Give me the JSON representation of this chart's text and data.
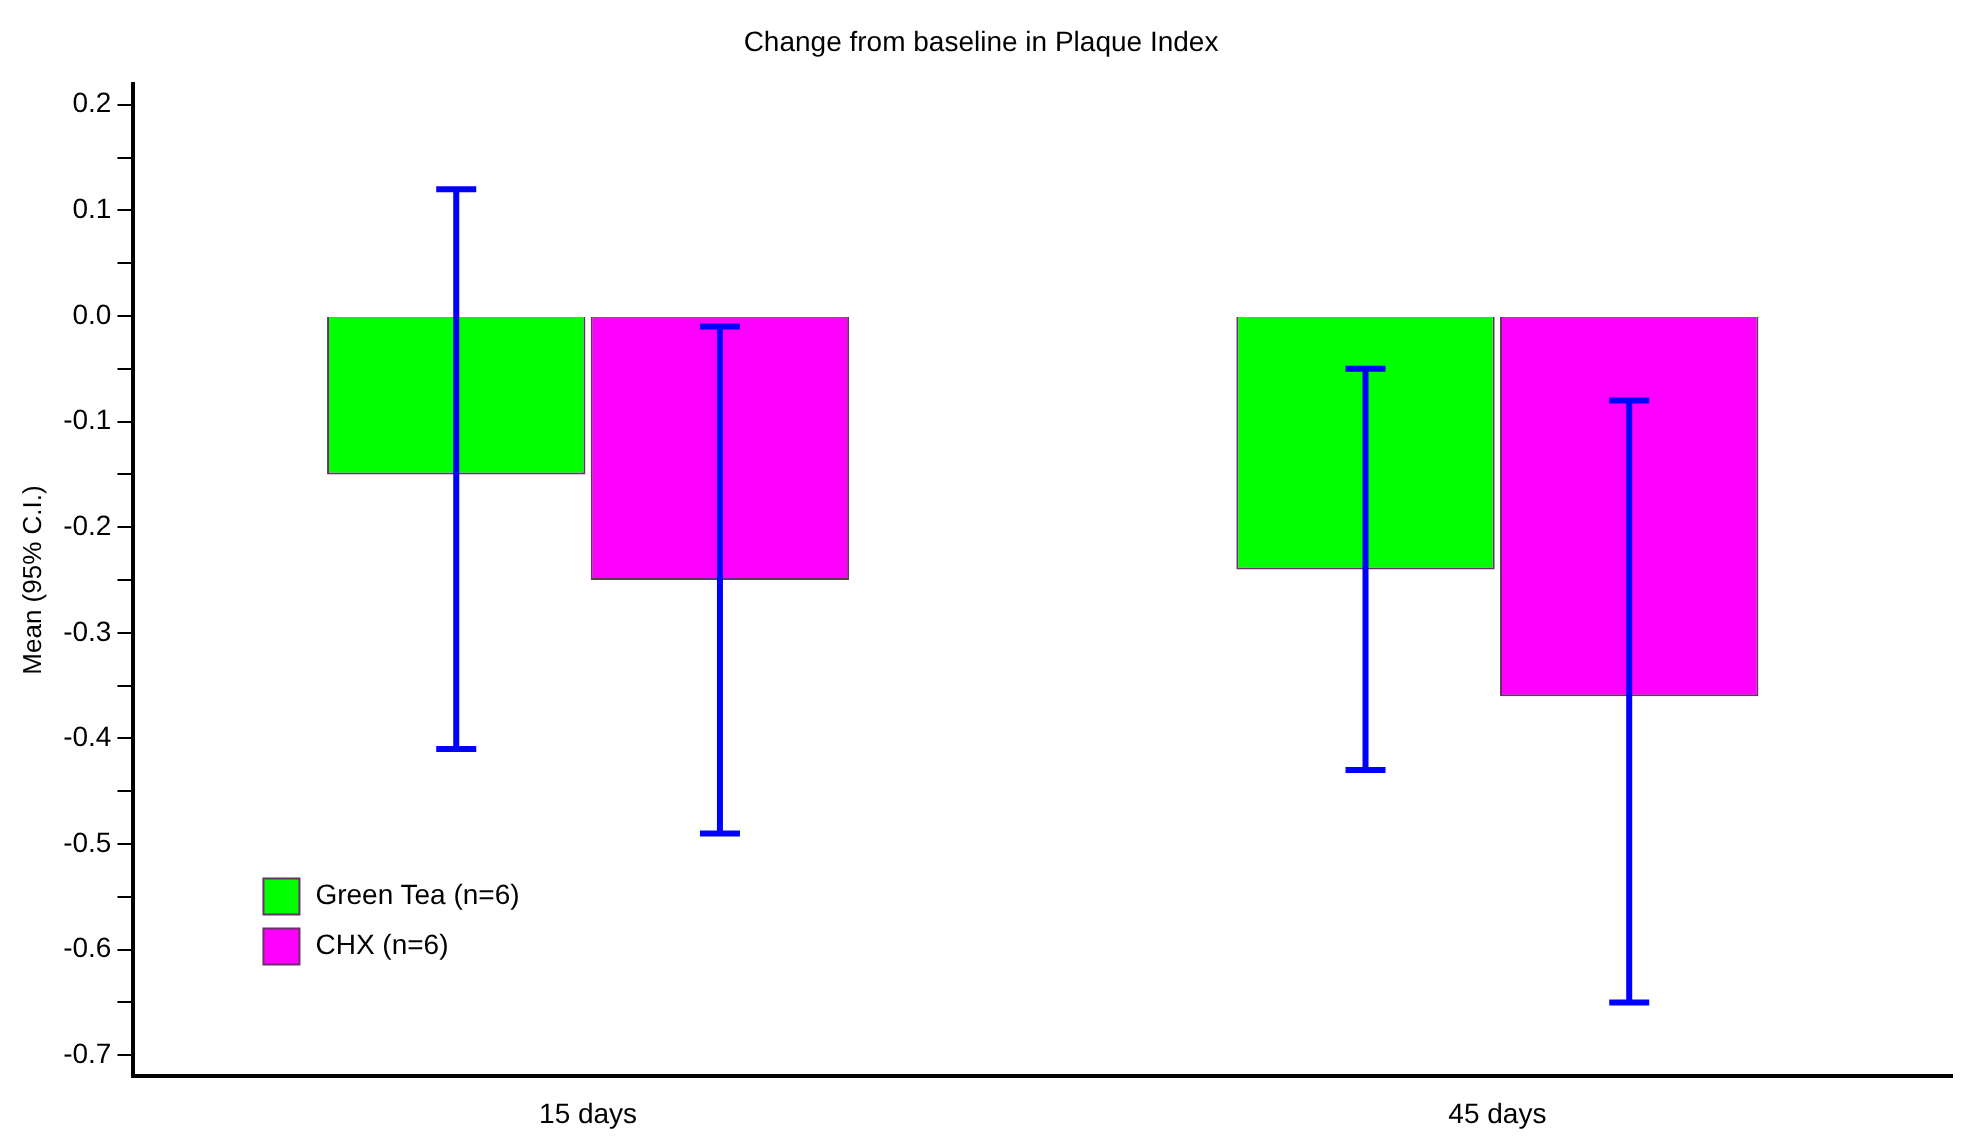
{
  "chart_data": {
    "type": "bar",
    "title": "Change from baseline in Plaque Index",
    "ylabel": "Mean (95% C.I.)",
    "categories": [
      "15 days",
      "45 days"
    ],
    "series": [
      {
        "name": "Green Tea (n=6)",
        "color": "#00ff00",
        "values": [
          -0.15,
          -0.24
        ],
        "errors": [
          [
            -0.41,
            0.12
          ],
          [
            -0.43,
            -0.05
          ]
        ]
      },
      {
        "name": "CHX (n=6)",
        "color": "#ff00ff",
        "values": [
          -0.25,
          -0.36
        ],
        "errors": [
          [
            -0.49,
            -0.01
          ],
          [
            -0.65,
            -0.08
          ]
        ]
      }
    ],
    "ylim": [
      -0.72,
      0.22
    ],
    "yticks": [
      -0.7,
      {
        "value": -0.65,
        "label": null
      },
      -0.6,
      {
        "value": -0.55,
        "label": null
      },
      -0.5,
      {
        "value": -0.45,
        "label": null
      },
      -0.4,
      {
        "value": -0.35,
        "label": null
      },
      -0.3,
      {
        "value": -0.25,
        "label": null
      },
      -0.2,
      {
        "value": -0.15,
        "label": null
      },
      -0.1,
      {
        "value": -0.05,
        "label": null
      },
      {
        "value": 0,
        "label": "0.0"
      },
      {
        "value": 0.05,
        "label": null
      },
      0.1,
      {
        "value": 0.15,
        "label": null
      },
      0.2
    ],
    "grid": false,
    "legend": "bottom left"
  }
}
